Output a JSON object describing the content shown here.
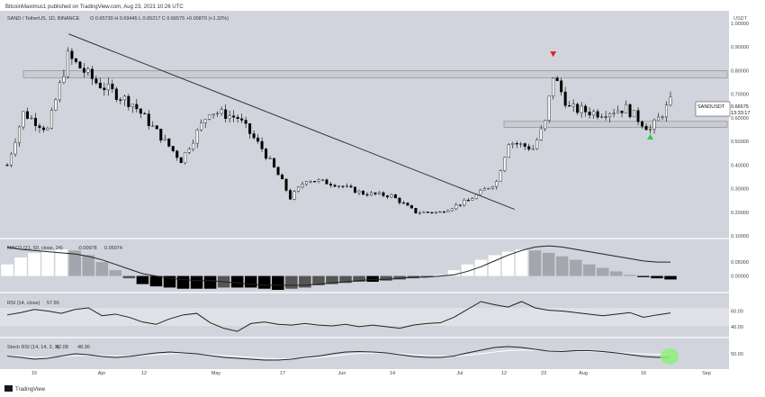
{
  "header": {
    "publisher": "BitcoinMaximus1 published on TradingView.com, Aug 23, 2021 10:26 UTC",
    "symbol_line": "SAND / TetherUS, 1D, BINANCE",
    "ohlc": "O 0.65739  H 0.69445  L 0.65217  C 0.66575  +0.00870 (+1.32%)"
  },
  "price_axis": {
    "currency": "USDT",
    "ticks": [
      "1.00000",
      "0.90000",
      "0.80000",
      "0.70000",
      "0.60000",
      "0.50000",
      "0.40000",
      "0.30000",
      "0.20000",
      "0.10000"
    ]
  },
  "price_tag": {
    "symbol": "SANDUSDT",
    "price": "0.66575",
    "countdown": "13:33:17"
  },
  "macd": {
    "label": "MACD (21, 50, close, 24)",
    "v1": "-0.00978",
    "v2": "0.05974",
    "ticks": [
      "0.05000",
      "0.00000"
    ]
  },
  "rsi": {
    "label": "RSI (14, close)",
    "value": "57.55",
    "ticks": [
      "60.00",
      "40.00"
    ]
  },
  "stoch": {
    "label": "Stoch RSI (14, 14, 3, 3)",
    "v1": "42.08",
    "v2": "48.36",
    "ticks": [
      "50.00"
    ]
  },
  "x_axis": {
    "labels": [
      "15",
      "Apr",
      "12",
      "May",
      "17",
      "Jun",
      "14",
      "Jul",
      "12",
      "23",
      "Aug",
      "16",
      "Sep"
    ]
  },
  "footer": {
    "brand": "TradingView"
  },
  "colors": {
    "background": "#d1d4dc",
    "pane": "#dadce3",
    "up_candle": "#ffffff",
    "down_candle": "#000000",
    "resistance_box": "#c9cbd1",
    "bearish_marker": "#e02020",
    "bullish_marker": "#2ecc40",
    "highlight": "#8df07a"
  },
  "chart_data": {
    "type": "candlestick",
    "price_range": [
      0.1,
      1.0
    ],
    "resistance_zone": [
      0.77,
      0.8
    ],
    "support_zone": [
      0.56,
      0.585
    ],
    "trendline": {
      "from": {
        "date": "2021-03-29",
        "price": 0.94
      },
      "to": {
        "date": "2021-07-11",
        "price": 0.22
      }
    },
    "anchors": [
      {
        "date": "2021-03-12",
        "price": 0.4
      },
      {
        "date": "2021-03-16",
        "price": 0.62
      },
      {
        "date": "2021-03-22",
        "price": 0.55
      },
      {
        "date": "2021-03-27",
        "price": 0.86
      },
      {
        "date": "2021-04-03",
        "price": 0.75
      },
      {
        "date": "2021-04-12",
        "price": 0.66
      },
      {
        "date": "2021-04-18",
        "price": 0.54
      },
      {
        "date": "2021-04-24",
        "price": 0.42
      },
      {
        "date": "2021-05-01",
        "price": 0.63
      },
      {
        "date": "2021-05-08",
        "price": 0.6
      },
      {
        "date": "2021-05-14",
        "price": 0.47
      },
      {
        "date": "2021-05-19",
        "price": 0.33
      },
      {
        "date": "2021-05-21",
        "price": 0.26
      },
      {
        "date": "2021-05-25",
        "price": 0.34
      },
      {
        "date": "2021-06-01",
        "price": 0.32
      },
      {
        "date": "2021-06-08",
        "price": 0.28
      },
      {
        "date": "2021-06-15",
        "price": 0.27
      },
      {
        "date": "2021-06-21",
        "price": 0.2
      },
      {
        "date": "2021-06-27",
        "price": 0.2
      },
      {
        "date": "2021-07-04",
        "price": 0.25
      },
      {
        "date": "2021-07-11",
        "price": 0.33
      },
      {
        "date": "2021-07-14",
        "price": 0.5
      },
      {
        "date": "2021-07-20",
        "price": 0.47
      },
      {
        "date": "2021-07-23",
        "price": 0.58
      },
      {
        "date": "2021-07-25",
        "price": 0.78
      },
      {
        "date": "2021-07-29",
        "price": 0.64
      },
      {
        "date": "2021-08-05",
        "price": 0.62
      },
      {
        "date": "2021-08-12",
        "price": 0.64
      },
      {
        "date": "2021-08-18",
        "price": 0.55
      },
      {
        "date": "2021-08-23",
        "price": 0.666
      }
    ],
    "macd_hist_range": [
      -0.12,
      0.3
    ],
    "macd_hist": [
      0.1,
      0.16,
      0.2,
      0.22,
      0.23,
      0.22,
      0.18,
      0.12,
      0.05,
      -0.02,
      -0.07,
      -0.09,
      -0.1,
      -0.11,
      -0.11,
      -0.11,
      -0.1,
      -0.1,
      -0.1,
      -0.11,
      -0.12,
      -0.11,
      -0.1,
      -0.08,
      -0.07,
      -0.06,
      -0.05,
      -0.05,
      -0.04,
      -0.03,
      -0.02,
      -0.01,
      0.01,
      0.05,
      0.1,
      0.14,
      0.18,
      0.21,
      0.23,
      0.22,
      0.2,
      0.17,
      0.14,
      0.1,
      0.07,
      0.04,
      0.01,
      -0.01,
      -0.02,
      -0.03
    ],
    "macd_signal": [
      0.25,
      0.23,
      0.22,
      0.21,
      0.2,
      0.19,
      0.17,
      0.14,
      0.1,
      0.06,
      0.02,
      0.0,
      -0.02,
      -0.03,
      -0.04,
      -0.04,
      -0.05,
      -0.06,
      -0.07,
      -0.08,
      -0.08,
      -0.08,
      -0.08,
      -0.07,
      -0.06,
      -0.05,
      -0.04,
      -0.03,
      -0.03,
      -0.02,
      -0.01,
      -0.01,
      0.0,
      0.01,
      0.04,
      0.08,
      0.13,
      0.18,
      0.22,
      0.25,
      0.26,
      0.25,
      0.23,
      0.21,
      0.19,
      0.17,
      0.15,
      0.13,
      0.12,
      0.12
    ],
    "rsi_range": [
      25,
      80
    ],
    "rsi": [
      55,
      58,
      62,
      60,
      57,
      62,
      64,
      54,
      56,
      52,
      46,
      43,
      50,
      55,
      57,
      45,
      38,
      34,
      44,
      46,
      43,
      42,
      44,
      42,
      41,
      43,
      40,
      42,
      40,
      38,
      42,
      44,
      45,
      52,
      62,
      72,
      68,
      65,
      72,
      64,
      61,
      60,
      58,
      56,
      54,
      56,
      58,
      52,
      55,
      57.55
    ],
    "stoch_range": [
      20,
      80
    ],
    "stoch_k": [
      45,
      42,
      38,
      40,
      45,
      50,
      48,
      44,
      42,
      44,
      48,
      52,
      54,
      52,
      50,
      46,
      42,
      40,
      38,
      36,
      36,
      38,
      42,
      45,
      50,
      54,
      55,
      54,
      52,
      48,
      44,
      42,
      42,
      45,
      52,
      58,
      64,
      66,
      64,
      60,
      56,
      55,
      57,
      57,
      55,
      52,
      48,
      44,
      42,
      42.08
    ],
    "stoch_d": [
      46,
      44,
      42,
      42,
      44,
      46,
      47,
      46,
      45,
      45,
      46,
      48,
      50,
      51,
      50,
      48,
      46,
      44,
      42,
      40,
      39,
      39,
      40,
      42,
      45,
      48,
      51,
      52,
      52,
      50,
      48,
      46,
      45,
      45,
      47,
      50,
      54,
      57,
      58,
      58,
      57,
      56,
      56,
      55,
      54,
      53,
      51,
      50,
      49,
      48.36
    ]
  }
}
